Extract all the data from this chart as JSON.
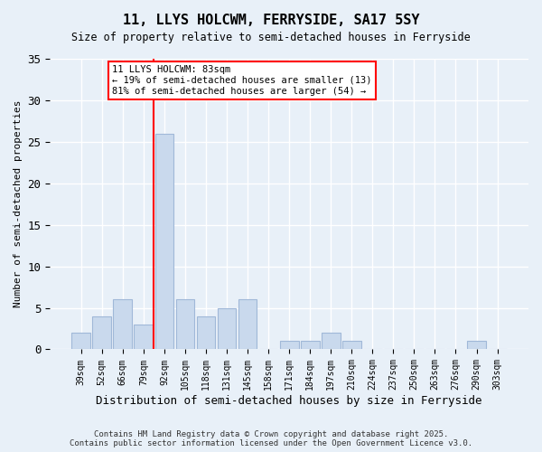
{
  "title": "11, LLYS HOLCWM, FERRYSIDE, SA17 5SY",
  "subtitle": "Size of property relative to semi-detached houses in Ferryside",
  "xlabel": "Distribution of semi-detached houses by size in Ferryside",
  "ylabel": "Number of semi-detached properties",
  "bar_labels": [
    "39sqm",
    "52sqm",
    "66sqm",
    "79sqm",
    "92sqm",
    "105sqm",
    "118sqm",
    "131sqm",
    "145sqm",
    "158sqm",
    "171sqm",
    "184sqm",
    "197sqm",
    "210sqm",
    "224sqm",
    "237sqm",
    "250sqm",
    "263sqm",
    "276sqm",
    "290sqm",
    "303sqm"
  ],
  "bar_values": [
    2,
    4,
    6,
    3,
    26,
    6,
    4,
    5,
    6,
    0,
    1,
    1,
    2,
    1,
    0,
    0,
    0,
    0,
    0,
    1,
    0
  ],
  "bar_color": "#c9d9ed",
  "bar_edge_color": "#a0b8d8",
  "bg_color": "#e8f0f8",
  "grid_color": "#ffffff",
  "red_line_x": 3.5,
  "annotation_title": "11 LLYS HOLCWM: 83sqm",
  "annotation_line1": "← 19% of semi-detached houses are smaller (13)",
  "annotation_line2": "81% of semi-detached houses are larger (54) →",
  "footer1": "Contains HM Land Registry data © Crown copyright and database right 2025.",
  "footer2": "Contains public sector information licensed under the Open Government Licence v3.0.",
  "ylim": [
    0,
    35
  ],
  "yticks": [
    0,
    5,
    10,
    15,
    20,
    25,
    30,
    35
  ]
}
